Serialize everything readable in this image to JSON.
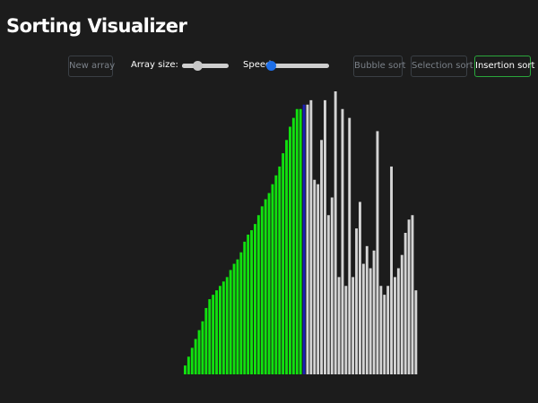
{
  "title": "Sorting Visualizer",
  "controls": {
    "new_array": "New array",
    "array_size_label": "Array size:",
    "array_size_value": 0.33,
    "speed_label": "Speed:",
    "speed_value": 0.0,
    "bubble_sort": "Bubble sort",
    "selection_sort": "Selection sort",
    "insertion_sort": "Insertion sort",
    "active_algorithm": "insertion_sort"
  },
  "colors": {
    "background": "#1c1c1c",
    "sorted": "#11e00f",
    "current": "#1a20b5",
    "unsorted": "#d4d4d4",
    "slider_thumb_size": "#c8c8c8",
    "slider_thumb_speed": "#1e6fe8",
    "active_border": "#2aa63c"
  },
  "bars": {
    "max_value": 320,
    "sorted_count": 34,
    "current_index": 34,
    "values": [
      10,
      20,
      30,
      40,
      50,
      60,
      75,
      85,
      90,
      95,
      100,
      105,
      110,
      118,
      125,
      130,
      138,
      150,
      158,
      163,
      170,
      180,
      190,
      198,
      205,
      215,
      225,
      235,
      250,
      265,
      280,
      290,
      300,
      300,
      305,
      305,
      310,
      220,
      215,
      265,
      310,
      180,
      200,
      320,
      110,
      300,
      100,
      290,
      110,
      165,
      195,
      125,
      145,
      120,
      140,
      275,
      100,
      90,
      100,
      235,
      110,
      120,
      135,
      160,
      175,
      180,
      95
    ]
  }
}
